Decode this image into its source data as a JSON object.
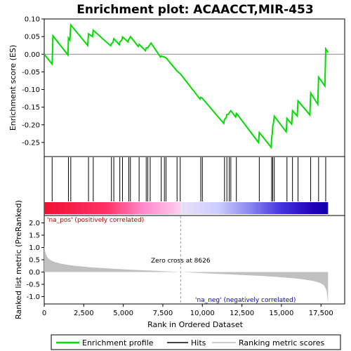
{
  "chart_data": {
    "type": "line",
    "title": "Enrichment plot: ACAACCT,MIR-453",
    "es_panel": {
      "ylabel": "Enrichment score (ES)",
      "ylim": [
        -0.29,
        0.1
      ],
      "yticks": [
        0.1,
        0.05,
        0.0,
        -0.05,
        -0.1,
        -0.15,
        -0.2,
        -0.25
      ],
      "ytick_labels": [
        "0.10",
        "0.05",
        "0.00",
        "-0.05",
        "-0.10",
        "-0.15",
        "-0.20",
        "-0.25"
      ],
      "series": [
        {
          "name": "Enrichment profile",
          "color": "#00dd00",
          "x": [
            0,
            500,
            550,
            1500,
            1530,
            1620,
            1680,
            2750,
            2800,
            3050,
            3100,
            4200,
            4250,
            4350,
            4400,
            4750,
            4780,
            4900,
            4950,
            5300,
            5350,
            5400,
            5450,
            5950,
            6000,
            6400,
            6450,
            6550,
            6600,
            6700,
            6750,
            7350,
            7400,
            7600,
            7700,
            8350,
            8400,
            8600,
            9850,
            9900,
            10000,
            11350,
            11400,
            11500,
            11550,
            11650,
            11700,
            11800,
            12100,
            12150,
            12200,
            13550,
            13600,
            14350,
            14380,
            14420,
            14450,
            14500,
            14550,
            15300,
            15350,
            15650,
            15700,
            16000,
            16050,
            16800,
            16850,
            17300,
            17350,
            17750,
            17800,
            17950
          ],
          "y": [
            0.0,
            -0.028,
            0.052,
            -0.002,
            0.046,
            0.04,
            0.083,
            0.025,
            0.058,
            0.05,
            0.068,
            0.024,
            0.03,
            0.034,
            0.044,
            0.027,
            0.035,
            0.04,
            0.049,
            0.035,
            0.042,
            0.045,
            0.05,
            0.022,
            0.028,
            0.01,
            0.018,
            0.018,
            0.022,
            0.028,
            0.032,
            -0.008,
            -0.005,
            -0.008,
            -0.01,
            -0.045,
            -0.048,
            -0.055,
            -0.127,
            -0.122,
            -0.125,
            -0.196,
            -0.185,
            -0.18,
            -0.171,
            -0.17,
            -0.166,
            -0.16,
            -0.178,
            -0.168,
            -0.17,
            -0.25,
            -0.222,
            -0.264,
            -0.238,
            -0.226,
            -0.204,
            -0.195,
            -0.176,
            -0.22,
            -0.182,
            -0.198,
            -0.16,
            -0.175,
            -0.132,
            -0.172,
            -0.11,
            -0.142,
            -0.065,
            -0.09,
            0.015,
            0.005
          ]
        }
      ],
      "zero_line": true
    },
    "hits_panel": {
      "legend_entry": "Hits",
      "hit_positions": [
        500,
        1530,
        1680,
        2800,
        3100,
        4250,
        4400,
        4780,
        4950,
        5350,
        5450,
        6000,
        6450,
        6550,
        6700,
        7400,
        7600,
        7700,
        8400,
        8600,
        9900,
        10000,
        11400,
        11550,
        11700,
        11800,
        12150,
        13600,
        14380,
        14450,
        14550,
        15350,
        15700,
        16050,
        16850,
        17350,
        17800
      ],
      "heatmap_stops": [
        {
          "x": 0,
          "color": "#ee1133"
        },
        {
          "x": 4000,
          "color": "#ff3366"
        },
        {
          "x": 6200,
          "color": "#ff88cc"
        },
        {
          "x": 8600,
          "color": "#ffccee"
        },
        {
          "x": 8626,
          "color": "#e8e0f8"
        },
        {
          "x": 11000,
          "color": "#ccccff"
        },
        {
          "x": 13000,
          "color": "#8888ee"
        },
        {
          "x": 15000,
          "color": "#4433dd"
        },
        {
          "x": 17000,
          "color": "#2200bb"
        },
        {
          "x": 17950,
          "color": "#1100aa"
        }
      ]
    },
    "metric_panel": {
      "ylabel": "Ranked list metric (PreRanked)",
      "ylim": [
        -1.3,
        2.3
      ],
      "yticks": [
        2.0,
        1.5,
        1.0,
        0.5,
        0.0,
        -0.5,
        -1.0
      ],
      "ytick_labels": [
        "2.0",
        "1.5",
        "1.0",
        "0.5",
        "0.0",
        "-0.5",
        "-1.0"
      ],
      "series": [
        {
          "name": "Ranking metric scores",
          "color": "#c0c0c0",
          "x": [
            0,
            50,
            150,
            300,
            600,
            1000,
            1500,
            2000,
            3000,
            4000,
            5000,
            6000,
            7000,
            8000,
            8626,
            9500,
            10500,
            11500,
            12500,
            13500,
            14500,
            15500,
            16000,
            16500,
            17000,
            17300,
            17500,
            17700,
            17850,
            17950
          ],
          "y": [
            1.1,
            0.85,
            0.65,
            0.52,
            0.42,
            0.35,
            0.29,
            0.25,
            0.19,
            0.15,
            0.11,
            0.08,
            0.05,
            0.02,
            0.0,
            -0.03,
            -0.06,
            -0.09,
            -0.12,
            -0.15,
            -0.19,
            -0.24,
            -0.27,
            -0.31,
            -0.36,
            -0.41,
            -0.46,
            -0.55,
            -0.75,
            -1.25
          ]
        }
      ],
      "annotations": {
        "pos_label": "'na_pos' (positively correlated)",
        "neg_label": "'na_neg' (negatively correlated)",
        "zero_cross": "Zero cross at 8626",
        "zero_cross_x": 8626
      }
    },
    "x_axis": {
      "xlabel": "Rank in Ordered Dataset",
      "xlim": [
        0,
        19000
      ],
      "xticks": [
        0,
        2500,
        5000,
        7500,
        10000,
        12500,
        15000,
        17500
      ],
      "xtick_labels": [
        "0",
        "2,500",
        "5,000",
        "7,500",
        "10,000",
        "12,500",
        "15,000",
        "17,500"
      ]
    },
    "legend": {
      "placement": "bottom",
      "entries": [
        "Enrichment profile",
        "Hits",
        "Ranking metric scores"
      ]
    },
    "colors": {
      "profile": "#00dd00",
      "hits": "#000000",
      "metric_fill": "#c0c0c0",
      "pos_text": "#cc0000",
      "neg_text": "#0000cc"
    }
  }
}
